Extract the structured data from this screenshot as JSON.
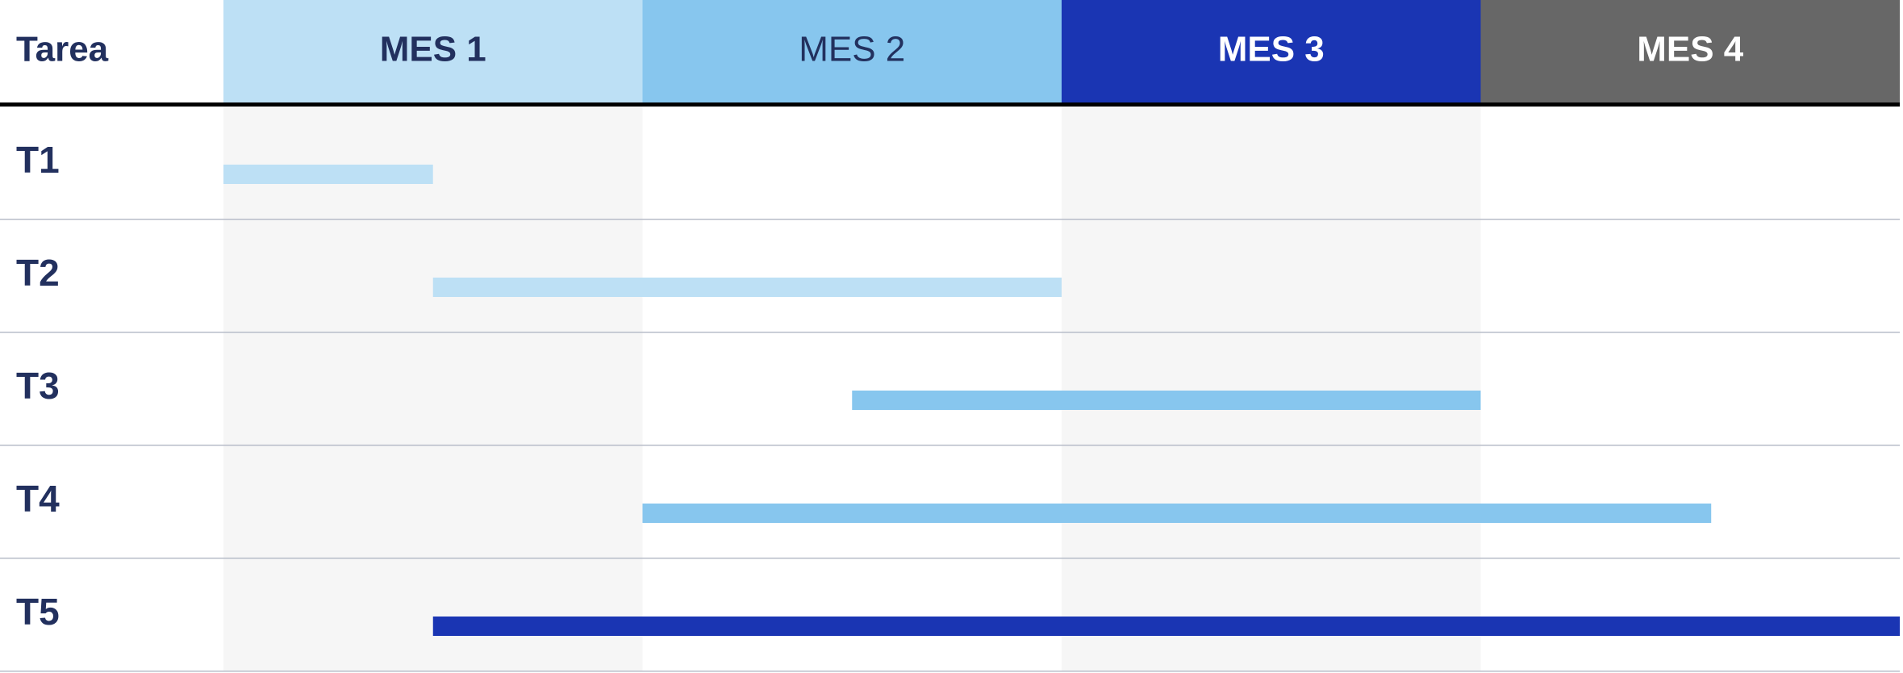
{
  "chart_data": {
    "type": "gantt",
    "task_header": "Tarea",
    "months": [
      {
        "label": "MES 1",
        "header_bg": "#bde0f5",
        "header_text": "#22305e",
        "bold": true
      },
      {
        "label": "MES 2",
        "header_bg": "#87c6ee",
        "header_text": "#22305e",
        "bold": false
      },
      {
        "label": "MES 3",
        "header_bg": "#1a35b3",
        "header_text": "#ffffff",
        "bold": true
      },
      {
        "label": "MES 4",
        "header_bg": "#676767",
        "header_text": "#ffffff",
        "bold": true
      }
    ],
    "month_range": [
      0,
      4
    ],
    "tasks": [
      {
        "label": "T1",
        "start": 0.0,
        "end": 0.5,
        "color": "#bde0f5"
      },
      {
        "label": "T2",
        "start": 0.5,
        "end": 2.0,
        "color": "#bde0f5"
      },
      {
        "label": "T3",
        "start": 1.5,
        "end": 3.0,
        "color": "#87c6ee"
      },
      {
        "label": "T4",
        "start": 1.0,
        "end": 3.55,
        "color": "#87c6ee"
      },
      {
        "label": "T5",
        "start": 0.5,
        "end": 4.0,
        "color": "#1a35b3"
      }
    ],
    "colors": {
      "label_text": "#22305e",
      "header_rule": "#000000",
      "row_rule": "#b7bcc8",
      "shade_band": "#f6f6f6"
    }
  }
}
